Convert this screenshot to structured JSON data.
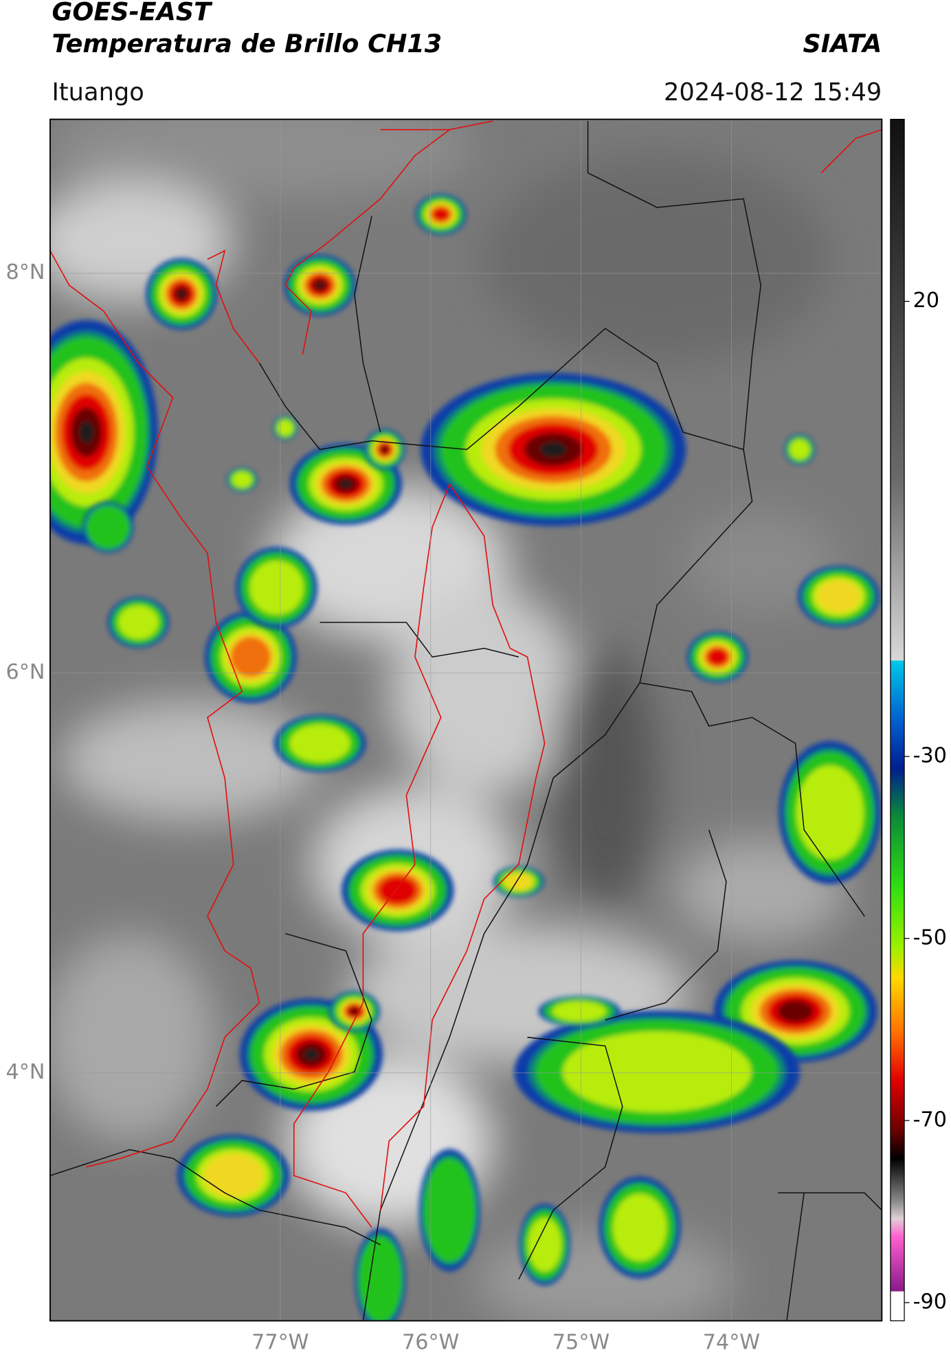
{
  "header": {
    "title": "GOES-EAST",
    "subtitle": "Temperatura de Brillo CH13",
    "source": "SIATA",
    "location": "Ituango",
    "datetime": "2024-08-12 15:49"
  },
  "map": {
    "lon_range": [
      -78.53,
      -73.0
    ],
    "lat_range": [
      2.76,
      8.77
    ],
    "grid": true,
    "lat_ticks": [
      {
        "value": 8,
        "label": "8°N"
      },
      {
        "value": 6,
        "label": "6°N"
      },
      {
        "value": 4,
        "label": "4°N"
      }
    ],
    "lon_ticks": [
      {
        "value": -77,
        "label": "77°W"
      },
      {
        "value": -76,
        "label": "76°W"
      },
      {
        "value": -75,
        "label": "75°W"
      },
      {
        "value": -74,
        "label": "74°W"
      }
    ]
  },
  "colorbar": {
    "range": [
      -92,
      40
    ],
    "ticks": [
      20,
      -30,
      -50,
      -70,
      -90
    ]
  }
}
